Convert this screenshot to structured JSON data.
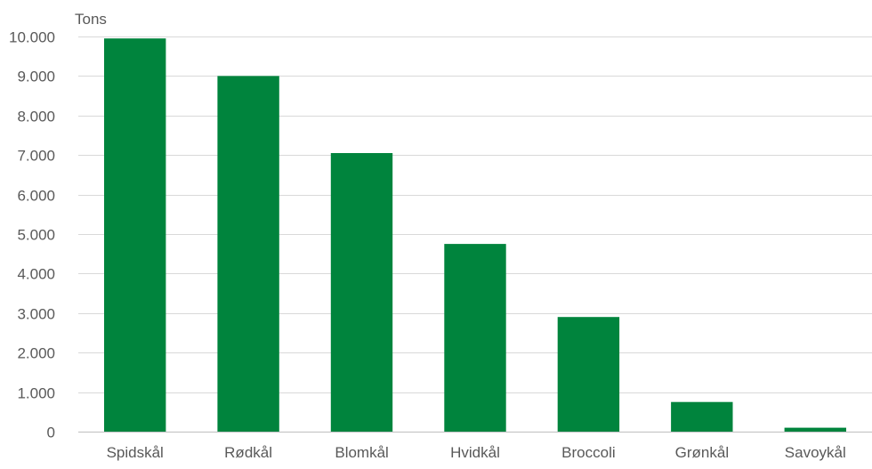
{
  "chart_data": {
    "type": "bar",
    "ylabel": "Tons",
    "categories": [
      "Spidskål",
      "Rødkål",
      "Blomkål",
      "Hvidkål",
      "Broccoli",
      "Grønkål",
      "Savoykål"
    ],
    "values": [
      9950,
      9000,
      7050,
      4750,
      2900,
      750,
      100
    ],
    "ylim": [
      0,
      10000
    ],
    "yticks": [
      0,
      1000,
      2000,
      3000,
      4000,
      5000,
      6000,
      7000,
      8000,
      9000,
      10000
    ],
    "ytick_labels": [
      "0",
      "1.000",
      "2.000",
      "3.000",
      "4.000",
      "5.000",
      "6.000",
      "7.000",
      "8.000",
      "9.000",
      "10.000"
    ],
    "grid": true,
    "bar_color": "#00843D",
    "grid_color": "#D9D9D9",
    "text_color": "#595959"
  }
}
